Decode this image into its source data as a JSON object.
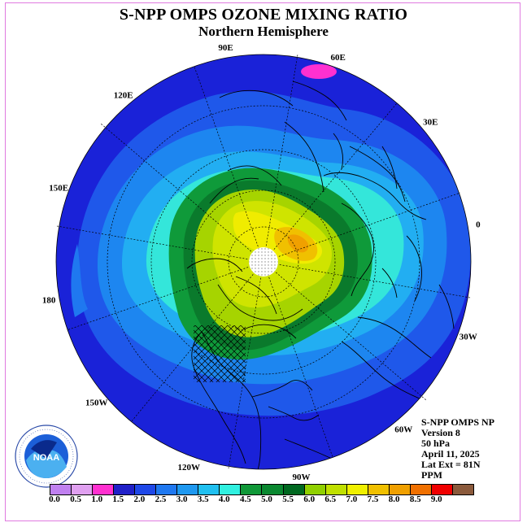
{
  "title": "S-NPP OMPS OZONE MIXING RATIO",
  "subtitle": "Northern Hemisphere",
  "longitude_labels": [
    {
      "text": "90E",
      "lon": 90
    },
    {
      "text": "60E",
      "lon": 60
    },
    {
      "text": "30E",
      "lon": 30
    },
    {
      "text": "0",
      "lon": 0
    },
    {
      "text": "30W",
      "lon": -30
    },
    {
      "text": "60W",
      "lon": -60
    },
    {
      "text": "90W",
      "lon": -90
    },
    {
      "text": "120W",
      "lon": -120
    },
    {
      "text": "150W",
      "lon": -150
    },
    {
      "text": "180",
      "lon": 180
    },
    {
      "text": "150E",
      "lon": 150
    },
    {
      "text": "120E",
      "lon": 120
    }
  ],
  "info": {
    "product": "S-NPP OMPS NP",
    "version": "Version 8",
    "pressure": "50 hPa",
    "date": "April 11, 2025",
    "lat_ext": "Lat Ext = 81N",
    "units": "PPM"
  },
  "colorbar": {
    "colors": [
      "#c080f0",
      "#e0a0f0",
      "#ff30d0",
      "#2020c8",
      "#1f48e8",
      "#1f78f0",
      "#1e98f0",
      "#20c0f0",
      "#30f0e0",
      "#109838",
      "#0a8830",
      "#006820",
      "#90d000",
      "#c0e000",
      "#f0f000",
      "#f0c000",
      "#f0a000",
      "#f07000",
      "#f00000",
      "#8b5a3c"
    ],
    "ticks": [
      "0.0",
      "0.5",
      "1.0",
      "1.5",
      "2.0",
      "2.5",
      "3.0",
      "3.5",
      "4.0",
      "4.5",
      "5.0",
      "5.5",
      "6.0",
      "6.5",
      "7.0",
      "7.5",
      "8.0",
      "8.5",
      "9.0"
    ]
  },
  "logo": {
    "text": "NOAA"
  }
}
